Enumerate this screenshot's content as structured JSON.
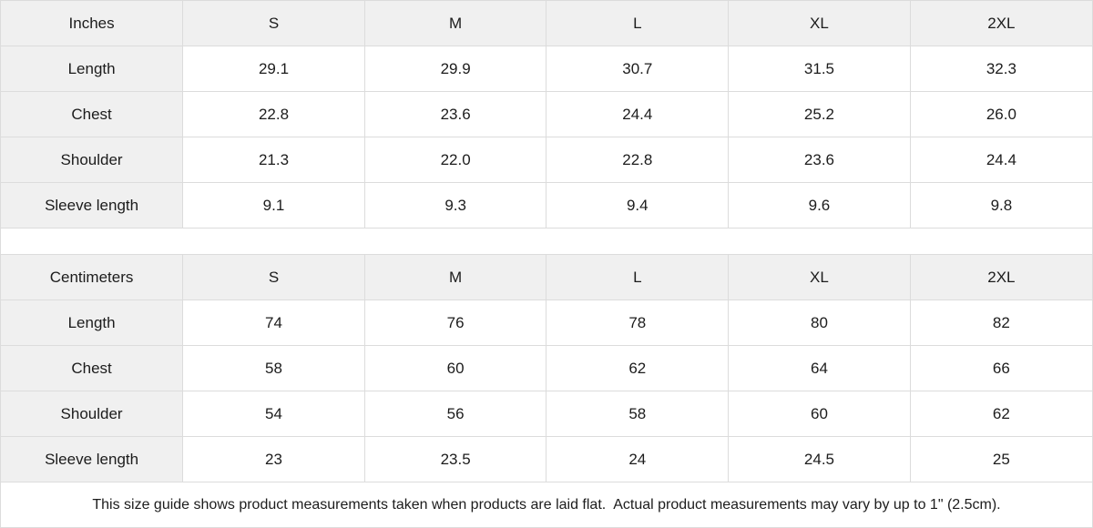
{
  "table_inches": {
    "unit_label": "Inches",
    "sizes": [
      "S",
      "M",
      "L",
      "XL",
      "2XL"
    ],
    "rows": [
      {
        "label": "Length",
        "values": [
          "29.1",
          "29.9",
          "30.7",
          "31.5",
          "32.3"
        ]
      },
      {
        "label": "Chest",
        "values": [
          "22.8",
          "23.6",
          "24.4",
          "25.2",
          "26.0"
        ]
      },
      {
        "label": "Shoulder",
        "values": [
          "21.3",
          "22.0",
          "22.8",
          "23.6",
          "24.4"
        ]
      },
      {
        "label": "Sleeve length",
        "values": [
          "9.1",
          "9.3",
          "9.4",
          "9.6",
          "9.8"
        ]
      }
    ]
  },
  "table_centimeters": {
    "unit_label": "Centimeters",
    "sizes": [
      "S",
      "M",
      "L",
      "XL",
      "2XL"
    ],
    "rows": [
      {
        "label": "Length",
        "values": [
          "74",
          "76",
          "78",
          "80",
          "82"
        ]
      },
      {
        "label": "Chest",
        "values": [
          "58",
          "60",
          "62",
          "64",
          "66"
        ]
      },
      {
        "label": "Shoulder",
        "values": [
          "54",
          "56",
          "58",
          "60",
          "62"
        ]
      },
      {
        "label": "Sleeve length",
        "values": [
          "23",
          "23.5",
          "24",
          "24.5",
          "25"
        ]
      }
    ]
  },
  "footer": {
    "note": "This size guide shows product measurements taken when products are laid flat.  Actual product measurements may vary by up to 1\" (2.5cm)."
  },
  "colors": {
    "header_bg": "#f0f0f0",
    "border": "#dcdcdc",
    "text": "#1c1c1c",
    "cell_bg": "#ffffff"
  }
}
